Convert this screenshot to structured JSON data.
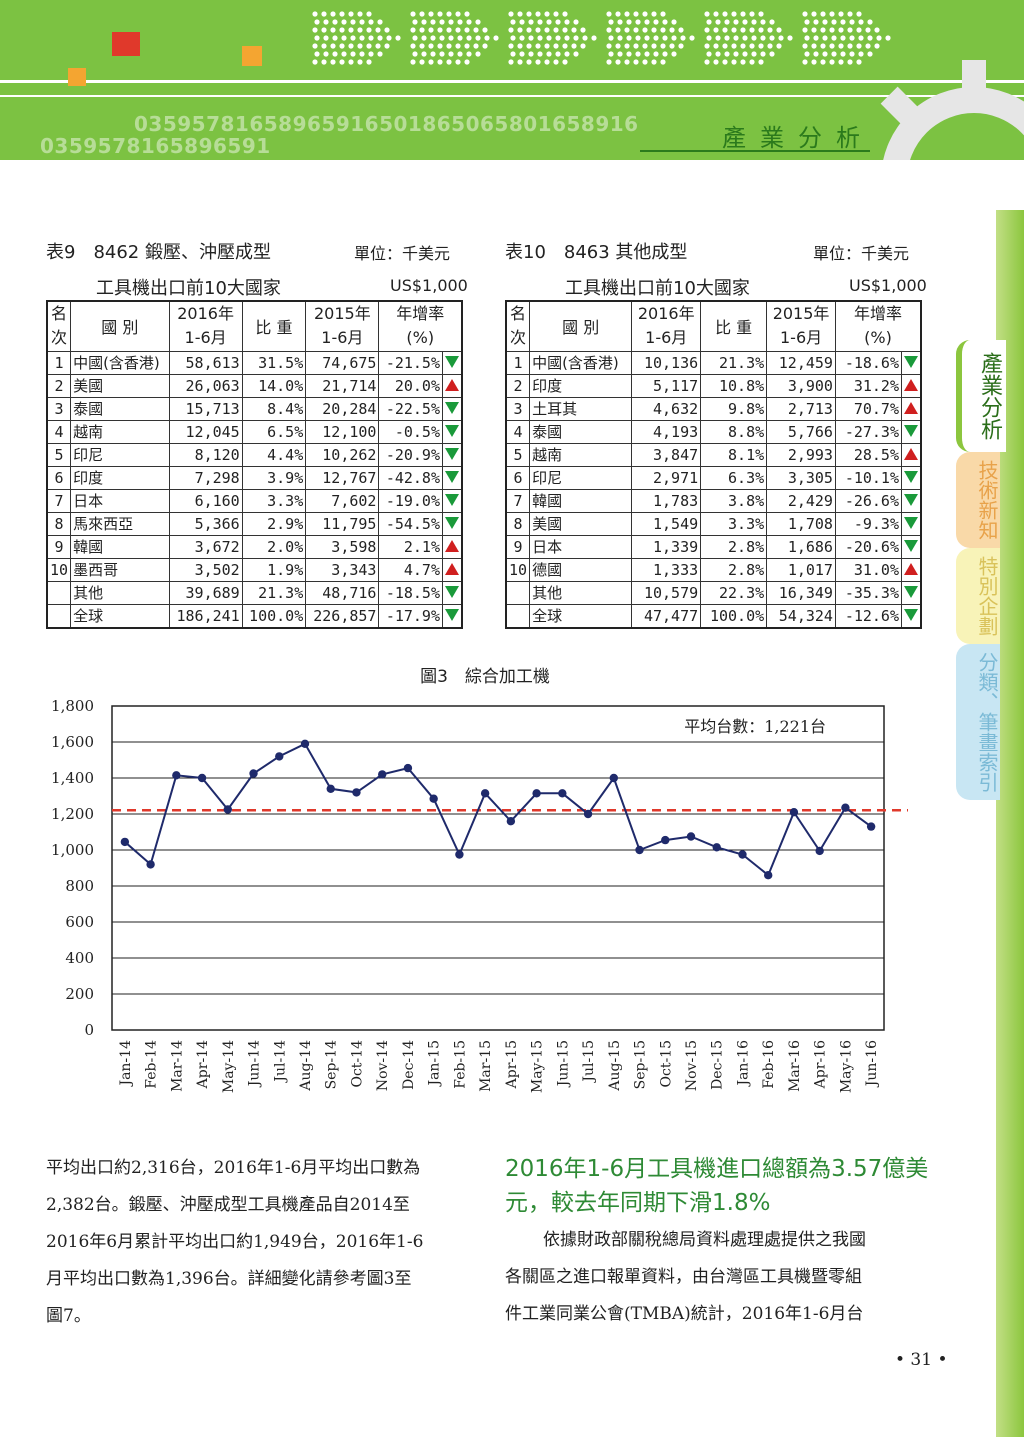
{
  "header": {
    "section_title": "產業分析",
    "decor_numbers_1": "03595781658965916501865065801658916",
    "decor_numbers_2": "0359578165896591",
    "colors": {
      "green": "#7cc242",
      "dark_green": "#2b7a1c",
      "orange": "#f4a531",
      "red": "#e0392b"
    }
  },
  "side_tabs": [
    {
      "label": "產業分析",
      "state": "active"
    },
    {
      "label": "技術新知",
      "state": "inactive"
    },
    {
      "label": "特別企劃",
      "state": "inactive"
    },
    {
      "label": "分類、筆畫索引",
      "state": "inactive"
    }
  ],
  "table9": {
    "caption": "表9　8462  鍛壓、沖壓成型",
    "unit": "單位：千美元",
    "subtitle": "工具機出口前10大國家",
    "subunit": "US$1,000",
    "headers": {
      "rank": "名次",
      "country": "國 別",
      "y2016": "2016年\n1-6月",
      "share": "比 重",
      "y2015": "2015年\n1-6月",
      "growth": "年增率\n(%)"
    },
    "rows": [
      {
        "rank": "1",
        "country": "中國(含香港)",
        "v2016": "58,613",
        "share": "31.5%",
        "v2015": "74,675",
        "growth": "-21.5%",
        "trend": "down"
      },
      {
        "rank": "2",
        "country": "美國",
        "v2016": "26,063",
        "share": "14.0%",
        "v2015": "21,714",
        "growth": "20.0%",
        "trend": "up"
      },
      {
        "rank": "3",
        "country": "泰國",
        "v2016": "15,713",
        "share": "8.4%",
        "v2015": "20,284",
        "growth": "-22.5%",
        "trend": "down"
      },
      {
        "rank": "4",
        "country": "越南",
        "v2016": "12,045",
        "share": "6.5%",
        "v2015": "12,100",
        "growth": "-0.5%",
        "trend": "down"
      },
      {
        "rank": "5",
        "country": "印尼",
        "v2016": "8,120",
        "share": "4.4%",
        "v2015": "10,262",
        "growth": "-20.9%",
        "trend": "down"
      },
      {
        "rank": "6",
        "country": "印度",
        "v2016": "7,298",
        "share": "3.9%",
        "v2015": "12,767",
        "growth": "-42.8%",
        "trend": "down"
      },
      {
        "rank": "7",
        "country": "日本",
        "v2016": "6,160",
        "share": "3.3%",
        "v2015": "7,602",
        "growth": "-19.0%",
        "trend": "down"
      },
      {
        "rank": "8",
        "country": "馬來西亞",
        "v2016": "5,366",
        "share": "2.9%",
        "v2015": "11,795",
        "growth": "-54.5%",
        "trend": "down"
      },
      {
        "rank": "9",
        "country": "韓國",
        "v2016": "3,672",
        "share": "2.0%",
        "v2015": "3,598",
        "growth": "2.1%",
        "trend": "up"
      },
      {
        "rank": "10",
        "country": "墨西哥",
        "v2016": "3,502",
        "share": "1.9%",
        "v2015": "3,343",
        "growth": "4.7%",
        "trend": "up"
      },
      {
        "rank": "",
        "country": "其他",
        "v2016": "39,689",
        "share": "21.3%",
        "v2015": "48,716",
        "growth": "-18.5%",
        "trend": "down"
      },
      {
        "rank": "",
        "country": "全球",
        "v2016": "186,241",
        "share": "100.0%",
        "v2015": "226,857",
        "growth": "-17.9%",
        "trend": "down"
      }
    ]
  },
  "table10": {
    "caption": "表10　8463  其他成型",
    "unit": "單位：千美元",
    "subtitle": "工具機出口前10大國家",
    "subunit": "US$1,000",
    "headers": {
      "rank": "名次",
      "country": "國 別",
      "y2016": "2016年\n1-6月",
      "share": "比 重",
      "y2015": "2015年\n1-6月",
      "growth": "年增率\n(%)"
    },
    "rows": [
      {
        "rank": "1",
        "country": "中國(含香港)",
        "v2016": "10,136",
        "share": "21.3%",
        "v2015": "12,459",
        "growth": "-18.6%",
        "trend": "down"
      },
      {
        "rank": "2",
        "country": "印度",
        "v2016": "5,117",
        "share": "10.8%",
        "v2015": "3,900",
        "growth": "31.2%",
        "trend": "up"
      },
      {
        "rank": "3",
        "country": "土耳其",
        "v2016": "4,632",
        "share": "9.8%",
        "v2015": "2,713",
        "growth": "70.7%",
        "trend": "up"
      },
      {
        "rank": "4",
        "country": "泰國",
        "v2016": "4,193",
        "share": "8.8%",
        "v2015": "5,766",
        "growth": "-27.3%",
        "trend": "down"
      },
      {
        "rank": "5",
        "country": "越南",
        "v2016": "3,847",
        "share": "8.1%",
        "v2015": "2,993",
        "growth": "28.5%",
        "trend": "up"
      },
      {
        "rank": "6",
        "country": "印尼",
        "v2016": "2,971",
        "share": "6.3%",
        "v2015": "3,305",
        "growth": "-10.1%",
        "trend": "down"
      },
      {
        "rank": "7",
        "country": "韓國",
        "v2016": "1,783",
        "share": "3.8%",
        "v2015": "2,429",
        "growth": "-26.6%",
        "trend": "down"
      },
      {
        "rank": "8",
        "country": "美國",
        "v2016": "1,549",
        "share": "3.3%",
        "v2015": "1,708",
        "growth": "-9.3%",
        "trend": "down"
      },
      {
        "rank": "9",
        "country": "日本",
        "v2016": "1,339",
        "share": "2.8%",
        "v2015": "1,686",
        "growth": "-20.6%",
        "trend": "down"
      },
      {
        "rank": "10",
        "country": "德國",
        "v2016": "1,333",
        "share": "2.8%",
        "v2015": "1,017",
        "growth": "31.0%",
        "trend": "up"
      },
      {
        "rank": "",
        "country": "其他",
        "v2016": "10,579",
        "share": "22.3%",
        "v2015": "16,349",
        "growth": "-35.3%",
        "trend": "down"
      },
      {
        "rank": "",
        "country": "全球",
        "v2016": "47,477",
        "share": "100.0%",
        "v2015": "54,324",
        "growth": "-12.6%",
        "trend": "down"
      }
    ]
  },
  "chart_data": {
    "type": "line",
    "title": "圖3　綜合加工機",
    "annotation": "平均台數：1,221台",
    "categories": [
      "Jan-14",
      "Feb-14",
      "Mar-14",
      "Apr-14",
      "May-14",
      "Jun-14",
      "Jul-14",
      "Aug-14",
      "Sep-14",
      "Oct-14",
      "Nov-14",
      "Dec-14",
      "Jan-15",
      "Feb-15",
      "Mar-15",
      "Apr-15",
      "May-15",
      "Jun-15",
      "Jul-15",
      "Aug-15",
      "Sep-15",
      "Oct-15",
      "Nov-15",
      "Dec-15",
      "Jan-16",
      "Feb-16",
      "Mar-16",
      "Apr-16",
      "May-16",
      "Jun-16"
    ],
    "values": [
      1045,
      920,
      1415,
      1400,
      1225,
      1425,
      1520,
      1590,
      1340,
      1320,
      1420,
      1455,
      1285,
      975,
      1315,
      1160,
      1315,
      1315,
      1200,
      1400,
      1000,
      1055,
      1075,
      1015,
      975,
      860,
      1210,
      995,
      1235,
      1130
    ],
    "average": 1221,
    "ylim": [
      0,
      1800
    ],
    "yticks": [
      "0",
      "200",
      "400",
      "600",
      "800",
      "1,000",
      "1,200",
      "1,400",
      "1,600",
      "1,800"
    ],
    "grid": true,
    "series_color": "#1f2a6b",
    "average_color": "#e0392b"
  },
  "left_paragraph": [
    "平均出口約2,316台，2016年1-6月平均出口數為",
    "2,382台。鍛壓、沖壓成型工具機產品自2014至",
    "2016年6月累計平均出口約1,949台，2016年1-6",
    "月平均出口數為1,396台。詳細變化請參考圖3至",
    "圖7。"
  ],
  "section_heading": "2016年1-6月工具機進口總額為3.57億美元，較去年同期下滑1.8%",
  "right_paragraph": [
    "依據財政部關稅總局資料處理處提供之我國",
    "各關區之進口報單資料，由台灣區工具機暨零組",
    "件工業同業公會(TMBA)統計，2016年1-6月台"
  ],
  "page_number": "• 31 •"
}
